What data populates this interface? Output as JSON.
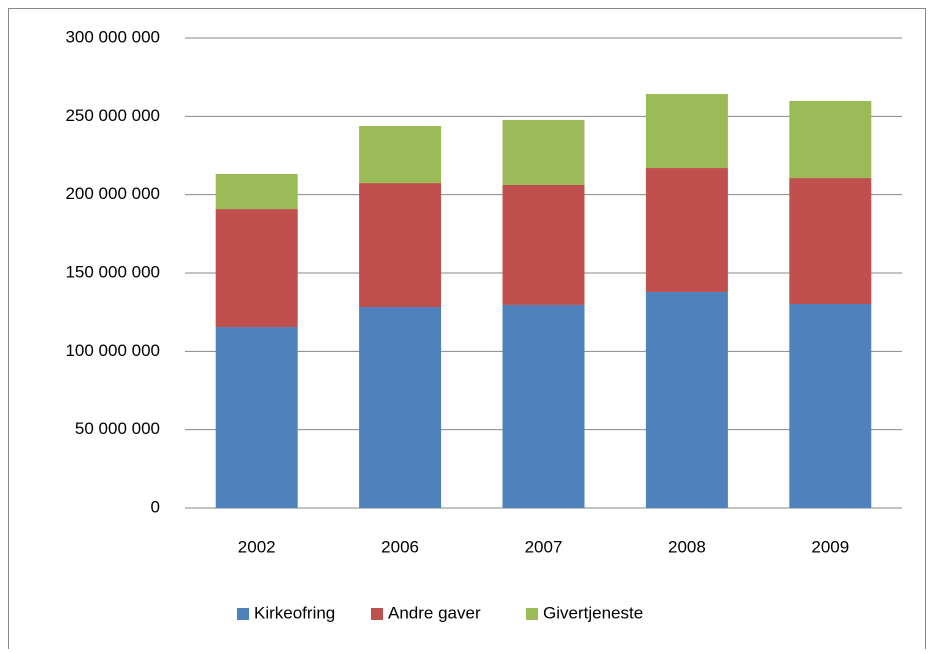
{
  "chart_data": {
    "type": "stacked-bar",
    "categories": [
      "2002",
      "2006",
      "2007",
      "2008",
      "2009"
    ],
    "series": [
      {
        "name": "Kirkeofring",
        "color": "#4f81bd",
        "values": [
          115500000,
          128300000,
          129600000,
          137900000,
          130200000
        ]
      },
      {
        "name": "Andre gaver",
        "color": "#c0504d",
        "values": [
          75300000,
          79100000,
          76600000,
          79100000,
          80400000
        ]
      },
      {
        "name": "Givertjeneste",
        "color": "#9bbb59",
        "values": [
          22400000,
          36400000,
          41500000,
          47300000,
          49200000
        ]
      }
    ],
    "ylim": [
      0,
      300000000
    ],
    "yticks": [
      0,
      {
        "value": 50000000,
        "label": "50 000 000"
      },
      {
        "value": 100000000,
        "label": "100 000 000"
      },
      {
        "value": 150000000,
        "label": "150 000 000"
      },
      {
        "value": 200000000,
        "label": "200 000 000"
      },
      {
        "value": 250000000,
        "label": "250 000 000"
      },
      {
        "value": 300000000,
        "label": "300 000 000"
      }
    ],
    "grid": true,
    "legend": "bottom"
  }
}
